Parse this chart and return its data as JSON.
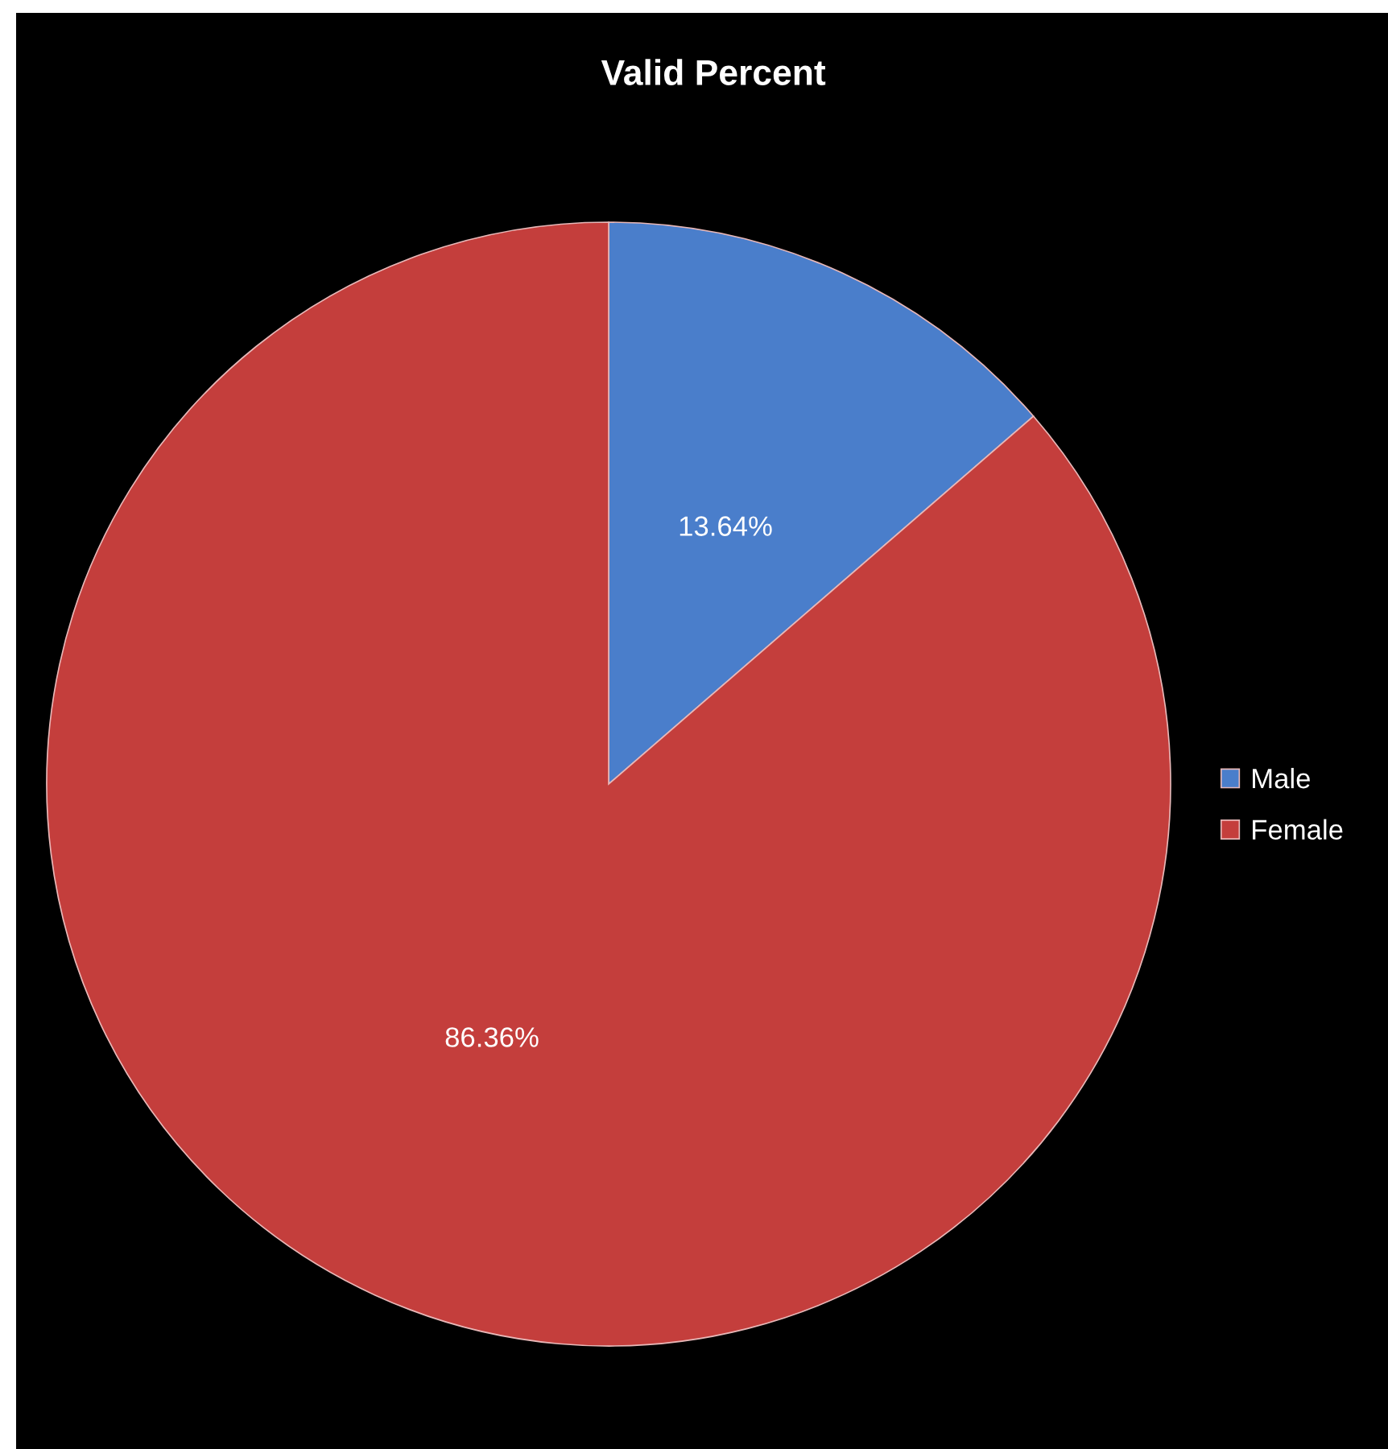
{
  "chart_data": {
    "type": "pie",
    "title": "Valid Percent",
    "categories": [
      "Male",
      "Female"
    ],
    "values": [
      13.64,
      86.36
    ],
    "colors": [
      "#4a7ecb",
      "#c43e3c"
    ],
    "value_labels": [
      "13.64%",
      "86.36%"
    ],
    "legend": "right"
  }
}
